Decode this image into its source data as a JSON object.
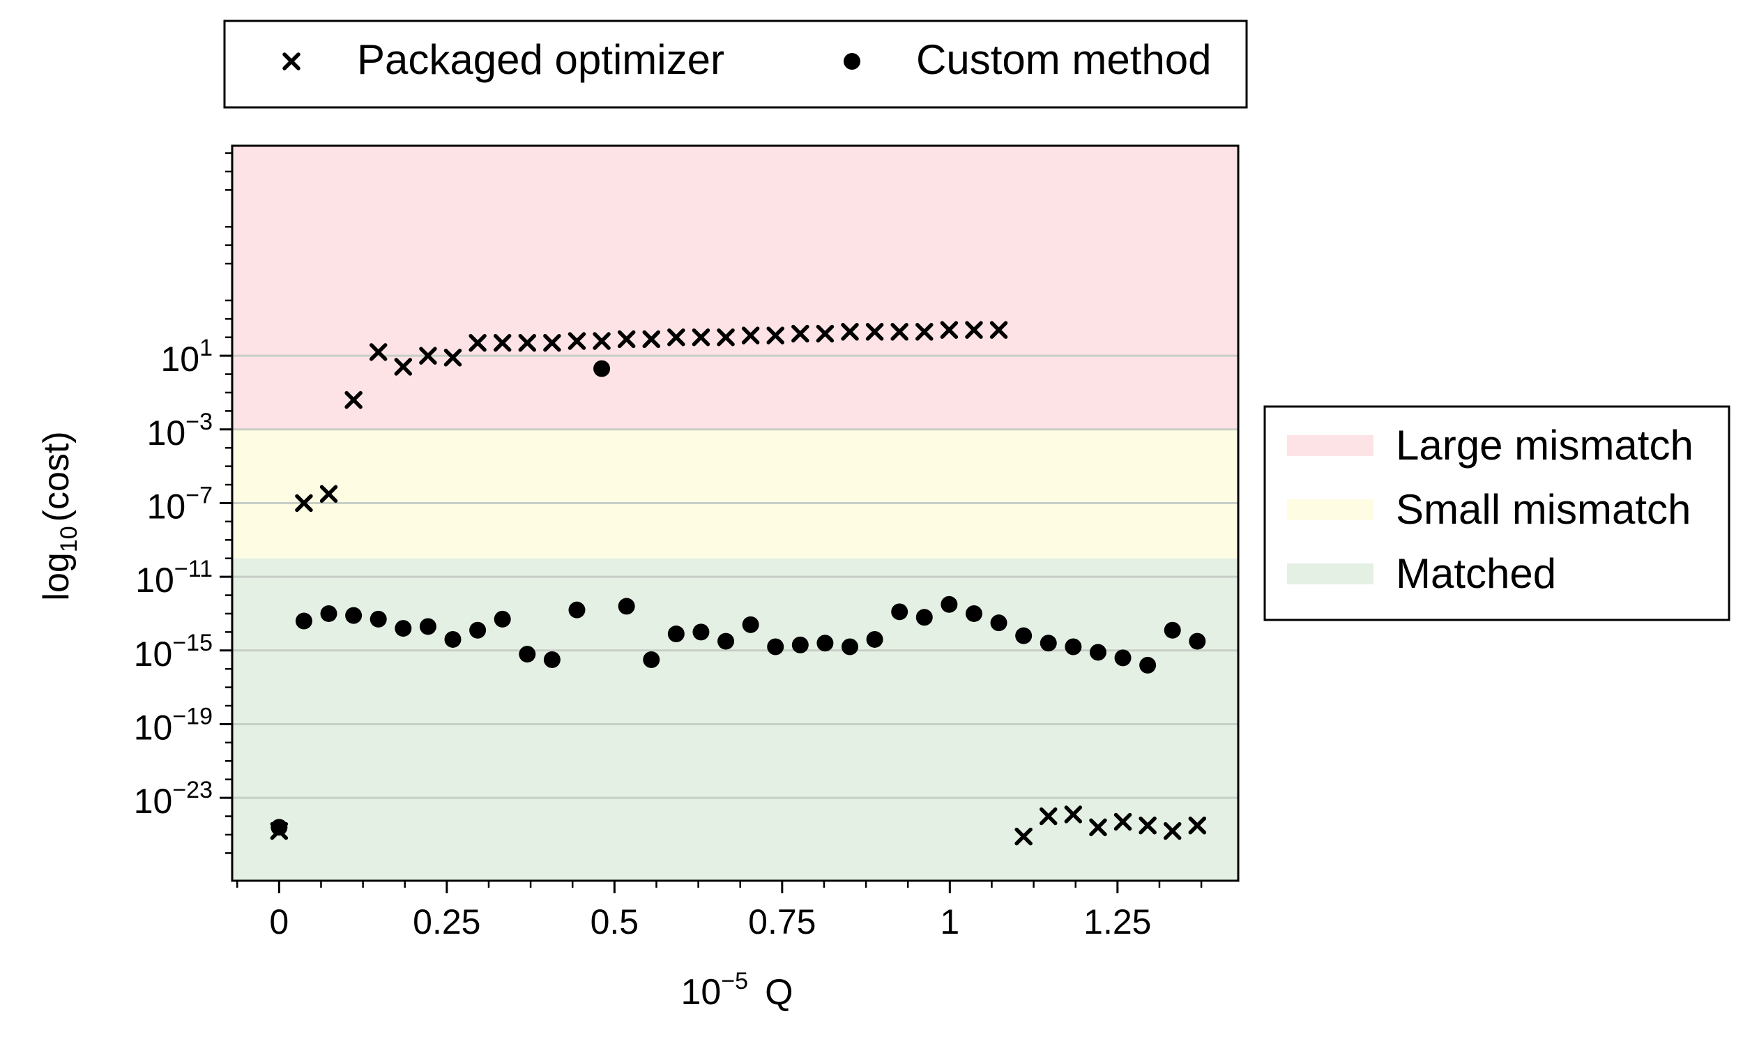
{
  "chart_data": {
    "type": "scatter",
    "title": "",
    "xlabel": "Q",
    "x_scale_label": "10",
    "x_scale_exp": "−5",
    "ylabel_prefix": "log",
    "ylabel_sub": "10",
    "ylabel_suffix": "(cost)",
    "y_scale": "log",
    "xlim": [
      -0.07,
      1.43
    ],
    "ylim": [
      -27.5,
      12.4
    ],
    "x_ticks": [
      {
        "value": 0,
        "label": "0"
      },
      {
        "value": 0.25,
        "label": "0.25"
      },
      {
        "value": 0.5,
        "label": "0.5"
      },
      {
        "value": 0.75,
        "label": "0.75"
      },
      {
        "value": 1,
        "label": "1"
      },
      {
        "value": 1.25,
        "label": "1.25"
      }
    ],
    "y_ticks": [
      {
        "value": 1,
        "base": "10",
        "exp": "1"
      },
      {
        "value": -3,
        "base": "10",
        "exp": "−3"
      },
      {
        "value": -7,
        "base": "10",
        "exp": "−7"
      },
      {
        "value": -11,
        "base": "10",
        "exp": "−11"
      },
      {
        "value": -15,
        "base": "10",
        "exp": "−15"
      },
      {
        "value": -19,
        "base": "10",
        "exp": "−19"
      },
      {
        "value": -23,
        "base": "10",
        "exp": "−23"
      }
    ],
    "grid": true,
    "bands": [
      {
        "name": "Large mismatch",
        "from": -3,
        "to": 12.4,
        "color": "#fde3e5"
      },
      {
        "name": "Small mismatch",
        "from": -10,
        "to": -3,
        "color": "#fefde3"
      },
      {
        "name": "Matched",
        "from": -27.5,
        "to": -10,
        "color": "#e4f0e3"
      }
    ],
    "series": [
      {
        "name": "Packaged optimizer",
        "marker": "x",
        "x": [
          0,
          0.037,
          0.074,
          0.111,
          0.148,
          0.185,
          0.222,
          0.259,
          0.296,
          0.333,
          0.37,
          0.407,
          0.444,
          0.481,
          0.518,
          0.555,
          0.592,
          0.629,
          0.666,
          0.703,
          0.74,
          0.777,
          0.814,
          0.851,
          0.888,
          0.925,
          0.962,
          0.999,
          1.036,
          1.073,
          1.11,
          1.147,
          1.184,
          1.221,
          1.258,
          1.295,
          1.332,
          1.369
        ],
        "y": [
          -24.8,
          -7.0,
          -6.5,
          -1.4,
          1.2,
          0.4,
          1.0,
          0.9,
          1.7,
          1.7,
          1.7,
          1.7,
          1.8,
          1.8,
          1.9,
          1.9,
          2.0,
          2.0,
          2.0,
          2.1,
          2.1,
          2.2,
          2.2,
          2.3,
          2.3,
          2.3,
          2.3,
          2.4,
          2.4,
          2.4,
          -25.1,
          -24.0,
          -23.9,
          -24.6,
          -24.3,
          -24.5,
          -24.8,
          -24.5
        ]
      },
      {
        "name": "Custom method",
        "marker": "circle",
        "x": [
          0,
          0.037,
          0.074,
          0.111,
          0.148,
          0.185,
          0.222,
          0.259,
          0.296,
          0.333,
          0.37,
          0.407,
          0.444,
          0.481,
          0.518,
          0.555,
          0.592,
          0.629,
          0.666,
          0.703,
          0.74,
          0.777,
          0.814,
          0.851,
          0.888,
          0.925,
          0.962,
          0.999,
          1.036,
          1.073,
          1.11,
          1.147,
          1.184,
          1.221,
          1.258,
          1.295,
          1.332,
          1.369
        ],
        "y": [
          -24.6,
          -13.4,
          -13.0,
          -13.1,
          -13.3,
          -13.8,
          -13.7,
          -14.4,
          -13.9,
          -13.3,
          -15.2,
          -15.5,
          -12.8,
          0.3,
          -12.6,
          -15.5,
          -14.1,
          -14.0,
          -14.5,
          -13.6,
          -14.8,
          -14.7,
          -14.6,
          -14.8,
          -14.4,
          -12.9,
          -13.2,
          -12.5,
          -13.0,
          -13.5,
          -14.2,
          -14.6,
          -14.8,
          -15.1,
          -15.4,
          -15.8,
          -13.9,
          -14.5
        ]
      }
    ],
    "legend_markers": {
      "position": "top-center",
      "items": [
        {
          "label": "Packaged optimizer",
          "marker": "x"
        },
        {
          "label": "Custom method",
          "marker": "circle"
        }
      ]
    },
    "legend_bands": {
      "position": "right",
      "items": [
        {
          "label": "Large mismatch",
          "color": "#fde3e5"
        },
        {
          "label": "Small mismatch",
          "color": "#fefde3"
        },
        {
          "label": "Matched",
          "color": "#e4f0e3"
        }
      ]
    },
    "grid_color": "#c7cec6",
    "marker_color": "#000000"
  }
}
